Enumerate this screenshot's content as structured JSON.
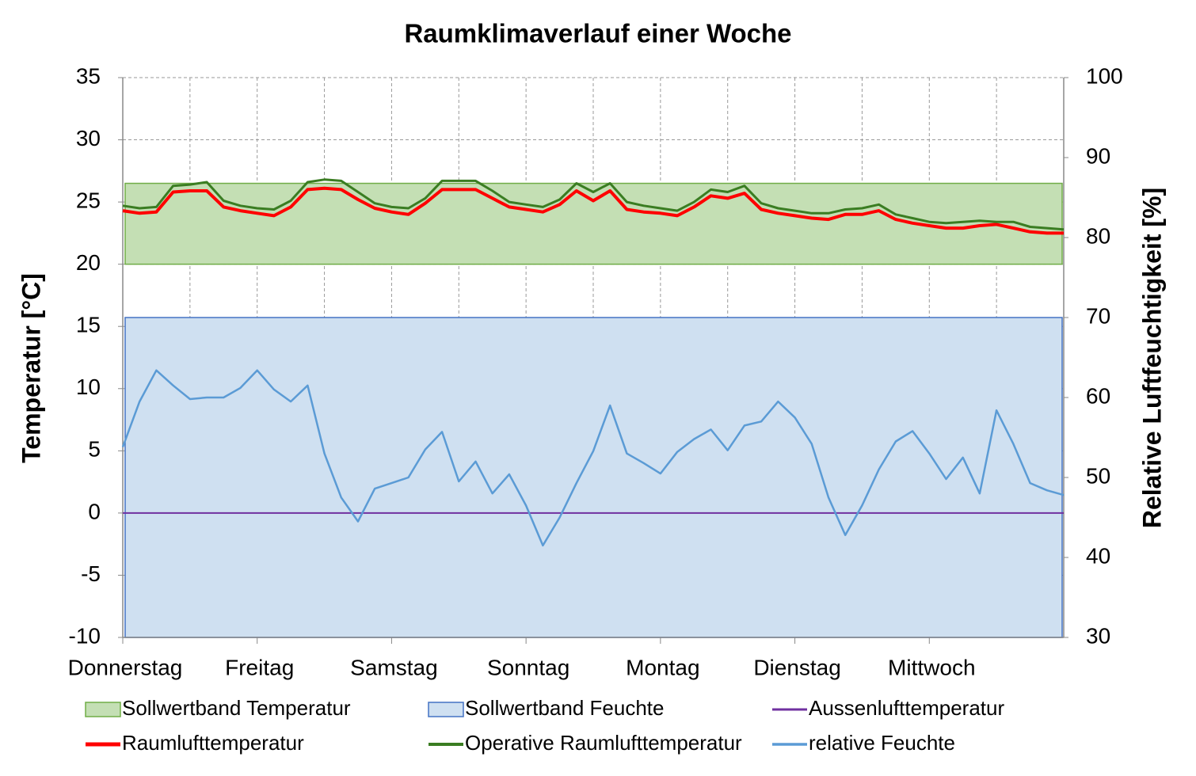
{
  "chart_data": {
    "type": "line",
    "title": "Raumklimaverlauf einer Woche",
    "ylabel": "Temperatur [°C]",
    "y2label": "Relative Luftfeuchtigkeit [%]",
    "x": [
      0,
      3,
      6,
      9,
      12,
      15,
      18,
      21,
      24,
      27,
      30,
      33,
      36,
      39,
      42,
      45,
      48,
      51,
      54,
      57,
      60,
      63,
      66,
      69,
      72,
      75,
      78,
      81,
      84,
      87,
      90,
      93,
      96,
      99,
      102,
      105,
      108,
      111,
      114,
      117,
      120,
      123,
      126,
      129,
      132,
      135,
      138,
      141,
      144,
      147,
      150,
      153,
      156,
      159,
      162,
      165,
      168
    ],
    "xlim": [
      0,
      168
    ],
    "xticks": [
      {
        "value": 0,
        "label": "Donnerstag"
      },
      {
        "value": 24,
        "label": "Freitag"
      },
      {
        "value": 48,
        "label": "Samstag"
      },
      {
        "value": 72,
        "label": "Sonntag"
      },
      {
        "value": 96,
        "label": "Montag"
      },
      {
        "value": 120,
        "label": "Dienstag"
      },
      {
        "value": 144,
        "label": "Mittwoch"
      }
    ],
    "xgrid": [
      12,
      24,
      36,
      48,
      60,
      72,
      84,
      96,
      108,
      120,
      132,
      144,
      156,
      168
    ],
    "ylim": [
      -10,
      35
    ],
    "yticks": [
      -10,
      -5,
      0,
      5,
      10,
      15,
      20,
      25,
      30,
      35
    ],
    "y2lim": [
      30,
      100
    ],
    "y2ticks": [
      30,
      40,
      50,
      60,
      70,
      80,
      90,
      100
    ],
    "grid": true,
    "bands": [
      {
        "name": "Sollwertband Temperatur",
        "color": "#c4dfb4",
        "edge": "#70ad47",
        "from": 20,
        "to": 26.5
      },
      {
        "name": "Sollwertband Feuchte",
        "color": "#cfe0f1",
        "edge": "#4472c4",
        "from": 30,
        "to": 70,
        "axis": "y2"
      }
    ],
    "series": [
      {
        "name": "Aussenlufttemperatur",
        "color": "#7030a0",
        "width": 2,
        "values": [
          0,
          0,
          0,
          0,
          0,
          0,
          0,
          0,
          0,
          0,
          0,
          0,
          0,
          0,
          0,
          0,
          0,
          0,
          0,
          0,
          0,
          0,
          0,
          0,
          0,
          0,
          0,
          0,
          0,
          0,
          0,
          0,
          0,
          0,
          0,
          0,
          0,
          0,
          0,
          0,
          0,
          0,
          0,
          0,
          0,
          0,
          0,
          0,
          0,
          0,
          0,
          0,
          0,
          0,
          0,
          0,
          0
        ]
      },
      {
        "name": "Raumlufttemperatur",
        "color": "#ff0000",
        "width": 4,
        "values": [
          24.3,
          24.1,
          24.2,
          25.8,
          25.9,
          25.9,
          24.6,
          24.3,
          24.1,
          23.9,
          24.6,
          26.0,
          26.1,
          26.0,
          25.2,
          24.5,
          24.2,
          24.0,
          24.9,
          26.0,
          26.0,
          26.0,
          25.3,
          24.6,
          24.4,
          24.2,
          24.8,
          25.9,
          25.1,
          25.9,
          24.4,
          24.2,
          24.1,
          23.9,
          24.6,
          25.5,
          25.3,
          25.7,
          24.4,
          24.1,
          23.9,
          23.7,
          23.6,
          24.0,
          24.0,
          24.3,
          23.6,
          23.3,
          23.1,
          22.9,
          22.9,
          23.1,
          23.2,
          22.9,
          22.6,
          22.5,
          22.5
        ]
      },
      {
        "name": "Operative Raumlufttemperatur",
        "color": "#3a7d22",
        "width": 3,
        "values": [
          24.7,
          24.5,
          24.6,
          26.3,
          26.4,
          26.6,
          25.1,
          24.7,
          24.5,
          24.4,
          25.1,
          26.6,
          26.8,
          26.7,
          25.8,
          24.9,
          24.6,
          24.5,
          25.3,
          26.7,
          26.7,
          26.7,
          25.9,
          25.0,
          24.8,
          24.6,
          25.2,
          26.5,
          25.8,
          26.5,
          25.0,
          24.7,
          24.5,
          24.3,
          25.0,
          26.0,
          25.8,
          26.3,
          24.9,
          24.5,
          24.3,
          24.1,
          24.1,
          24.4,
          24.5,
          24.8,
          24.0,
          23.7,
          23.4,
          23.3,
          23.4,
          23.5,
          23.4,
          23.4,
          23.0,
          22.9,
          22.8
        ]
      },
      {
        "name": "relative Feuchte",
        "color": "#5b9bd5",
        "width": 2.5,
        "axis": "y2",
        "values": [
          53.8,
          59.5,
          63.4,
          61.5,
          59.8,
          60.0,
          60.0,
          61.2,
          63.4,
          61.0,
          59.5,
          61.5,
          53.0,
          47.5,
          44.5,
          48.6,
          49.3,
          50.0,
          53.5,
          55.7,
          49.5,
          52.0,
          48.0,
          50.4,
          46.5,
          41.5,
          45.0,
          49.3,
          53.3,
          59.0,
          53.0,
          51.8,
          50.5,
          53.2,
          54.8,
          56.0,
          53.4,
          56.5,
          57.0,
          59.5,
          57.5,
          54.2,
          47.5,
          42.8,
          46.5,
          51.0,
          54.5,
          55.8,
          53.0,
          49.8,
          52.5,
          48.0,
          58.4,
          54.2,
          49.3,
          48.4,
          47.8
        ]
      }
    ]
  }
}
